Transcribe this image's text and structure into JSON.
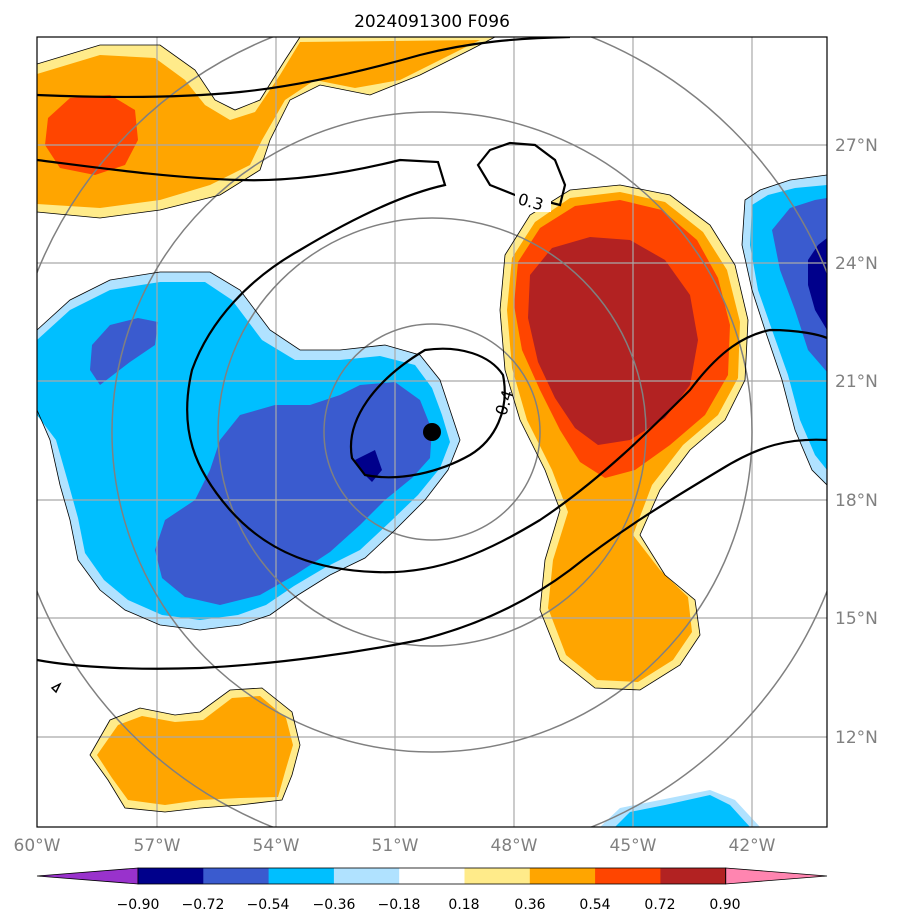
{
  "title": "2024091300 F096",
  "lon_labels": [
    "60°W",
    "57°W",
    "54°W",
    "51°W",
    "48°W",
    "45°W",
    "42°W"
  ],
  "lat_labels": [
    "27°N",
    "24°N",
    "21°N",
    "18°N",
    "15°N",
    "12°N"
  ],
  "contour_labels": [
    "0.3",
    "0.4"
  ],
  "colorbar": {
    "tick_labels": [
      "−0.90",
      "−0.72",
      "−0.54",
      "−0.36",
      "−0.18",
      "0.18",
      "0.36",
      "0.54",
      "0.72",
      "0.90"
    ],
    "colors": [
      "#9932cc",
      "#00008b",
      "#3a5bcf",
      "#00bfff",
      "#b0e2ff",
      "#ffffff",
      "#ffeb8a",
      "#ffa500",
      "#ff4500",
      "#b22222",
      "#ff85b0"
    ]
  },
  "colors": {
    "level_1": "#ffeb8a",
    "level_2": "#ffa500",
    "level_3": "#ff4500",
    "level_4": "#b22222",
    "neg_1": "#b0e2ff",
    "neg_2": "#00bfff",
    "neg_3": "#3a5bcf",
    "neg_4": "#00008b"
  }
}
